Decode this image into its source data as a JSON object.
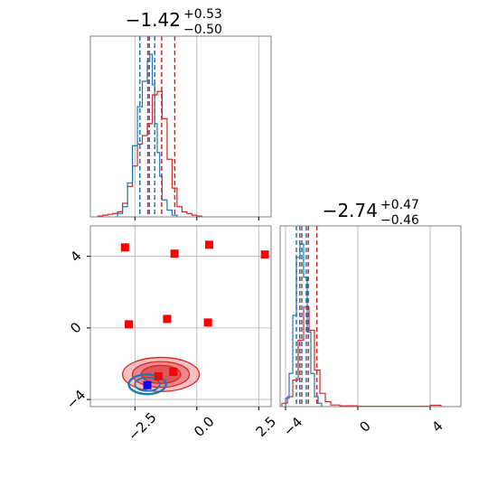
{
  "colors": {
    "red": "#d62728",
    "blue": "#1f77b4",
    "marker_red": "#ff0000",
    "marker_blue": "#0000ff",
    "grid": "#b0b0b0",
    "frame": "#808080"
  },
  "chart_data": [
    {
      "type": "histogram",
      "panel": "top-left marginal (x)",
      "title_main": "−1.42",
      "title_sup": "+0.53",
      "title_sub": "−0.50",
      "xlim": [
        -4.3,
        3.0
      ],
      "ticks": [
        -2.5,
        0.0,
        2.5
      ],
      "series": [
        {
          "color": "red",
          "bins": [
            -4.0,
            -3.8,
            -3.6,
            -3.4,
            -3.2,
            -3.0,
            -2.8,
            -2.6,
            -2.4,
            -2.2,
            -2.0,
            -1.8,
            -1.6,
            -1.4,
            -1.2,
            -1.0,
            -0.8,
            -0.6,
            -0.4,
            -0.2,
            0.0,
            0.2
          ],
          "counts": [
            0.005,
            0.01,
            0.015,
            0.02,
            0.03,
            0.08,
            0.18,
            0.3,
            0.43,
            0.48,
            0.55,
            0.72,
            0.74,
            0.58,
            0.34,
            0.17,
            0.06,
            0.03,
            0.02,
            0.01,
            0.005
          ],
          "quantiles": [
            -1.92,
            -1.42,
            -0.89
          ]
        },
        {
          "color": "blue",
          "bins": [
            -3.2,
            -3.0,
            -2.8,
            -2.6,
            -2.4,
            -2.2,
            -2.0,
            -1.9,
            -1.8,
            -1.7,
            -1.6,
            -1.5,
            -1.4,
            -1.2,
            -1.0,
            -0.8
          ],
          "counts": [
            0.02,
            0.06,
            0.2,
            0.42,
            0.65,
            0.8,
            0.92,
            0.96,
            0.78,
            0.55,
            0.38,
            0.24,
            0.1,
            0.04,
            0.01
          ],
          "quantiles": [
            -2.3,
            -1.98,
            -1.7
          ]
        }
      ]
    },
    {
      "type": "histogram",
      "panel": "bottom-right marginal (y)",
      "title_main": "−2.74",
      "title_sup": "+0.47",
      "title_sub": "−0.46",
      "xlim": [
        -4.3,
        5.7
      ],
      "ticks": [
        -4,
        0,
        4
      ],
      "series": [
        {
          "color": "red",
          "bins": [
            -4.2,
            -3.9,
            -3.6,
            -3.3,
            -3.0,
            -2.7,
            -2.4,
            -2.1,
            -1.8,
            -1.5,
            -1.0,
            0.0,
            4.0,
            4.6
          ],
          "counts": [
            0.02,
            0.06,
            0.16,
            0.4,
            0.6,
            0.46,
            0.22,
            0.08,
            0.03,
            0.01,
            0.005,
            0.002,
            0.008
          ],
          "quantiles": [
            -3.21,
            -2.74,
            -2.27
          ]
        },
        {
          "color": "blue",
          "bins": [
            -4.0,
            -3.8,
            -3.6,
            -3.4,
            -3.2,
            -3.0,
            -2.8,
            -2.6,
            -2.4,
            -2.2,
            -2.0
          ],
          "counts": [
            0.05,
            0.2,
            0.55,
            0.9,
            0.98,
            0.78,
            0.45,
            0.2,
            0.06,
            0.02
          ],
          "quantiles": [
            -3.4,
            -3.1,
            -2.85
          ]
        }
      ]
    },
    {
      "type": "scatter",
      "panel": "bottom-left 2D (x vs y)",
      "xlim": [
        -4.3,
        3.0
      ],
      "ylim": [
        -4.4,
        5.7
      ],
      "xticks": [
        "−2.5",
        "0.0",
        "2.5"
      ],
      "xtick_values": [
        -2.5,
        0.0,
        2.5
      ],
      "yticks": [
        "−4",
        "0",
        "4"
      ],
      "ytick_values": [
        -4,
        0,
        4
      ],
      "contours_red": {
        "center": [
          -1.45,
          -2.6
        ],
        "radii": [
          [
            1.55,
            0.95
          ],
          [
            1.15,
            0.72
          ],
          [
            0.8,
            0.5
          ]
        ]
      },
      "contours_blue": {
        "center": [
          -2.0,
          -3.15
        ],
        "radii": [
          [
            0.75,
            0.55
          ],
          [
            0.5,
            0.38
          ]
        ]
      },
      "points_red": [
        [
          -2.9,
          4.5
        ],
        [
          -0.9,
          4.15
        ],
        [
          0.5,
          4.65
        ],
        [
          2.75,
          4.1
        ],
        [
          -2.75,
          0.2
        ],
        [
          -1.2,
          0.5
        ],
        [
          0.45,
          0.3
        ],
        [
          -1.55,
          -2.7
        ],
        [
          -0.95,
          -2.45
        ]
      ],
      "points_blue": [
        [
          -2.0,
          -3.2
        ]
      ]
    }
  ]
}
